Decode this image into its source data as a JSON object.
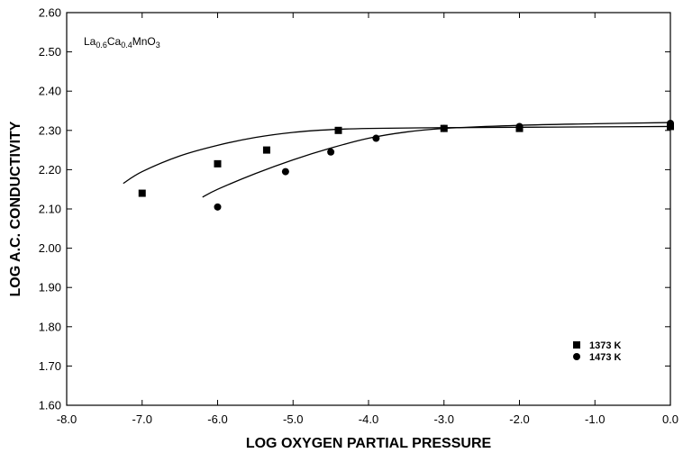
{
  "chart_data": {
    "type": "scatter",
    "title": "",
    "annotation": {
      "parts": [
        {
          "text": "La",
          "sub": false
        },
        {
          "text": "0.6",
          "sub": true
        },
        {
          "text": "Ca",
          "sub": false
        },
        {
          "text": "0.4",
          "sub": true
        },
        {
          "text": "MnO",
          "sub": false
        },
        {
          "text": "3",
          "sub": true
        }
      ]
    },
    "xlabel": "LOG OXYGEN PARTIAL PRESSURE",
    "ylabel": "LOG A.C. CONDUCTIVITY",
    "xlim": [
      -8.0,
      0.0
    ],
    "ylim": [
      1.6,
      2.6
    ],
    "x_ticks": [
      -8.0,
      -7.0,
      -6.0,
      -5.0,
      -4.0,
      -3.0,
      -2.0,
      -1.0,
      0.0
    ],
    "x_tick_labels": [
      "-8.0",
      "-7.0",
      "-6.0",
      "-5.0",
      "-4.0",
      "-3.0",
      "-2.0",
      "-1.0",
      "0.0"
    ],
    "y_ticks": [
      1.6,
      1.7,
      1.8,
      1.9,
      2.0,
      2.1,
      2.2,
      2.3,
      2.4,
      2.5,
      2.6
    ],
    "y_tick_labels": [
      "1.60",
      "1.70",
      "1.80",
      "1.90",
      "2.00",
      "2.10",
      "2.20",
      "2.30",
      "2.40",
      "2.50",
      "2.60"
    ],
    "grid": false,
    "legend_position": "bottom-right",
    "series": [
      {
        "name": "1373 K",
        "marker": "square",
        "x": [
          -7.0,
          -6.0,
          -5.35,
          -4.4,
          -3.0,
          -2.0,
          0.0
        ],
        "y": [
          2.14,
          2.215,
          2.25,
          2.3,
          2.305,
          2.305,
          2.31
        ],
        "fit_x": [
          -7.25,
          -7.0,
          -6.5,
          -6.0,
          -5.5,
          -5.0,
          -4.5,
          -4.0,
          -3.0,
          -2.0,
          -1.0,
          0.0
        ],
        "fit_y": [
          2.165,
          2.195,
          2.235,
          2.262,
          2.282,
          2.295,
          2.302,
          2.305,
          2.307,
          2.308,
          2.309,
          2.31
        ]
      },
      {
        "name": "1473 K",
        "marker": "circle",
        "x": [
          -6.0,
          -5.1,
          -4.5,
          -3.9,
          -3.0,
          -2.0,
          0.0
        ],
        "y": [
          2.105,
          2.195,
          2.245,
          2.28,
          2.305,
          2.31,
          2.318
        ],
        "fit_x": [
          -6.2,
          -6.0,
          -5.5,
          -5.0,
          -4.5,
          -4.0,
          -3.5,
          -3.0,
          -2.0,
          -1.0,
          0.0
        ],
        "fit_y": [
          2.13,
          2.15,
          2.19,
          2.225,
          2.255,
          2.28,
          2.296,
          2.305,
          2.313,
          2.317,
          2.32
        ]
      }
    ]
  }
}
